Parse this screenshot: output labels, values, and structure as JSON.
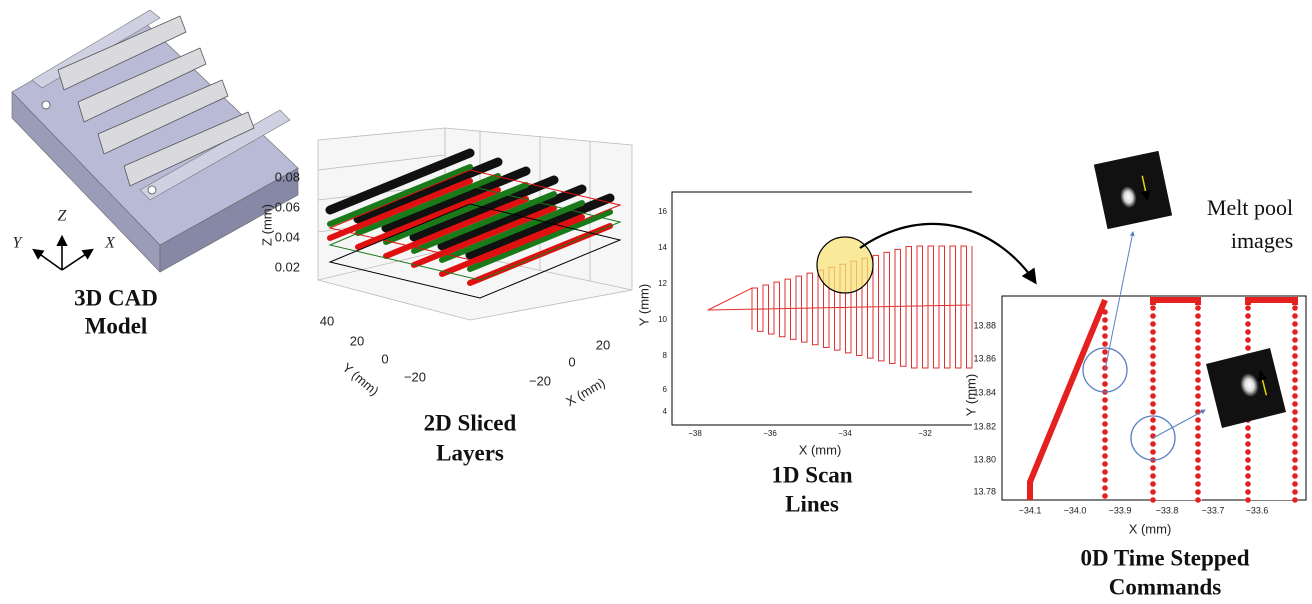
{
  "cad": {
    "caption": [
      "3D CAD",
      "Model"
    ],
    "axes": {
      "z": "Z",
      "y": "Y",
      "x": "X"
    }
  },
  "sliced": {
    "caption": [
      "2D Sliced",
      "Layers"
    ],
    "z_label": "Z (mm)",
    "y_label": "Y (mm)",
    "x_label": "X (mm)",
    "z_ticks": [
      "0.08",
      "0.06",
      "0.04",
      "0.02"
    ],
    "y_ticks": [
      "40",
      "20",
      "0",
      "−20"
    ],
    "x_ticks": [
      "20",
      "0",
      "−20"
    ]
  },
  "scan": {
    "caption": [
      "1D Scan",
      "Lines"
    ],
    "x_label": "X (mm)",
    "y_label": "Y (mm)",
    "y_ticks": [
      "16",
      "14",
      "12",
      "10",
      "8",
      "6",
      "4"
    ],
    "x_ticks": [
      "−38",
      "−36",
      "−34",
      "−32"
    ]
  },
  "time": {
    "caption": [
      "0D Time Stepped",
      "Commands"
    ],
    "x_label": "X (mm)",
    "y_label": "Y (mm)",
    "y_ticks": [
      "13.88",
      "13.86",
      "13.84",
      "13.82",
      "13.80",
      "13.78"
    ],
    "x_ticks": [
      "−34.1",
      "−34.0",
      "−33.9",
      "−33.8",
      "−33.7",
      "−33.6"
    ],
    "images_label": [
      "Melt pool",
      "images"
    ]
  }
}
